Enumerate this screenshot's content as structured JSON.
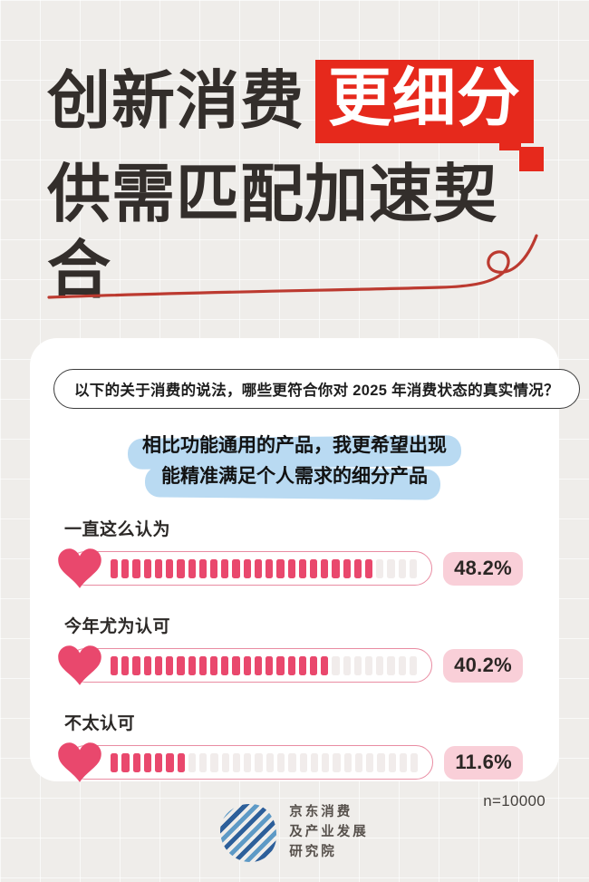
{
  "header": {
    "title_black": "创新消费",
    "title_highlight": "更细分",
    "title_line2": "供需匹配加速契合",
    "accent_red": "#E6291C"
  },
  "card": {
    "question": "以下的关于消费的说法，哪些更符合你对 2025 年消费状态的真实情况？",
    "statement_line1": "相比功能通用的产品，我更希望出现",
    "statement_line2": "能精准满足个人需求的细分产品",
    "highlight_color": "#B9DAF2"
  },
  "chart_data": {
    "type": "bar",
    "categories": [
      "一直这么认为",
      "今年尤为认可",
      "不太认可"
    ],
    "values": [
      48.2,
      40.2,
      11.6
    ],
    "value_labels": [
      "48.2%",
      "40.2%",
      "11.6%"
    ],
    "total_segments": 28,
    "filled_segments": [
      24,
      20,
      7
    ],
    "bar_fill_color": "#E9486D",
    "bar_empty_color": "#F1ECEB",
    "heart_color": "#E9486D",
    "badge_bg": "#F9CFD8"
  },
  "footer": {
    "sample_note": "n=10000",
    "logo_line1": "京东消费",
    "logo_line2": "及产业发展",
    "logo_line3": "研究院"
  }
}
